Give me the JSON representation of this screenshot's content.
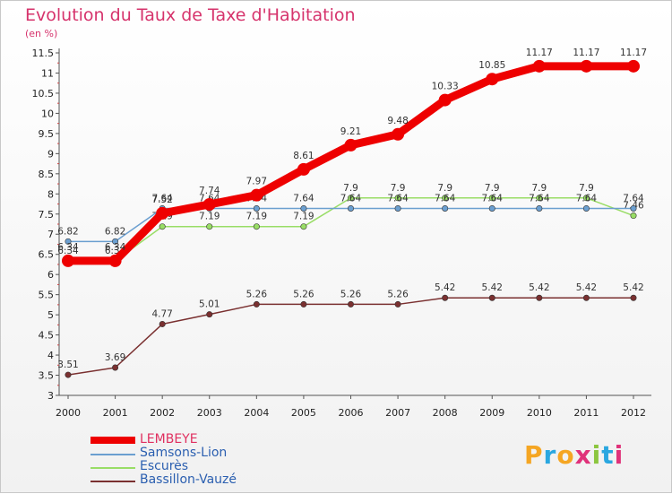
{
  "title": "Evolution du Taux de Taxe d'Habitation",
  "unit": "(en %)",
  "logo": {
    "text": "Proxiti",
    "letter_colors": [
      "#f5a623",
      "#2aa7e0",
      "#f5a623",
      "#e0327a",
      "#8cc63f",
      "#2aa7e0",
      "#e0327a"
    ]
  },
  "chart_data": {
    "type": "line",
    "title": "Evolution du Taux de Taxe d'Habitation",
    "ylabel": "(en %)",
    "x": [
      "2000",
      "2001",
      "2002",
      "2003",
      "2004",
      "2005",
      "2006",
      "2007",
      "2008",
      "2009",
      "2010",
      "2011",
      "2012"
    ],
    "ylim": [
      3,
      11.5
    ],
    "yticks": [
      "3",
      "3.5",
      "4",
      "4.5",
      "5",
      "5.5",
      "6",
      "6.5",
      "7",
      "7.5",
      "8",
      "8.5",
      "9",
      "9.5",
      "10",
      "10.5",
      "11",
      "11.5"
    ],
    "grid": false,
    "legend_position": "bottom-left",
    "series": [
      {
        "name": "LEMBEYE",
        "color": "#ee0000",
        "values": [
          6.34,
          6.34,
          7.52,
          7.74,
          7.97,
          8.61,
          9.21,
          9.48,
          10.33,
          10.85,
          11.17,
          11.17,
          11.17
        ],
        "labels": [
          "6.34",
          "6.34",
          "7.52",
          "7.74",
          "7.97",
          "8.61",
          "9.21",
          "9.48",
          "10.33",
          "10.85",
          "11.17",
          "11.17",
          "11.17"
        ]
      },
      {
        "name": "Samsons-Lion",
        "color": "#6b9fd0",
        "values": [
          6.82,
          6.82,
          7.64,
          7.64,
          7.64,
          7.64,
          7.64,
          7.64,
          7.64,
          7.64,
          7.64,
          7.64,
          7.64
        ],
        "labels": [
          "6.82",
          "6.82",
          "7.64",
          "7.64",
          "7.64",
          "7.64",
          "7.64",
          "7.64",
          "7.64",
          "7.64",
          "7.64",
          "7.64",
          "7.64"
        ]
      },
      {
        "name": "Escurès",
        "color": "#99dd66",
        "values": [
          6.34,
          6.34,
          7.19,
          7.19,
          7.19,
          7.19,
          7.9,
          7.9,
          7.9,
          7.9,
          7.9,
          7.9,
          7.46
        ],
        "labels": [
          "6.34",
          "6.34",
          "7.19",
          "7.19",
          "7.19",
          "7.19",
          "7.9",
          "7.9",
          "7.9",
          "7.9",
          "7.9",
          "7.9",
          "7.46"
        ]
      },
      {
        "name": "Bassillon-Vauzé",
        "color": "#7a3030",
        "values": [
          3.51,
          3.69,
          4.77,
          5.01,
          5.26,
          5.26,
          5.26,
          5.26,
          5.42,
          5.42,
          5.42,
          5.42,
          5.42
        ],
        "labels": [
          "3.51",
          "3.69",
          "4.77",
          "5.01",
          "5.26",
          "5.26",
          "5.26",
          "5.26",
          "5.42",
          "5.42",
          "5.42",
          "5.42",
          "5.42"
        ]
      }
    ]
  }
}
